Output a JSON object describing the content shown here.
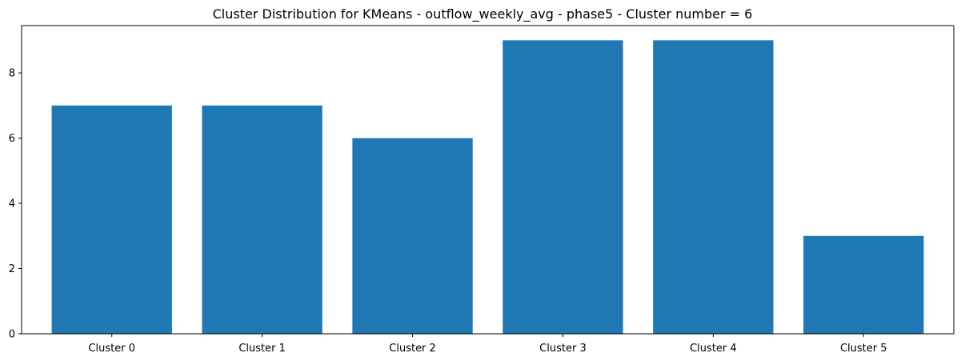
{
  "chart_data": {
    "type": "bar",
    "title": "Cluster Distribution for KMeans - outflow_weekly_avg - phase5 - Cluster number = 6",
    "xlabel": "",
    "ylabel": "",
    "categories": [
      "Cluster 0",
      "Cluster 1",
      "Cluster 2",
      "Cluster 3",
      "Cluster 4",
      "Cluster 5"
    ],
    "values": [
      7,
      7,
      6,
      9,
      9,
      3
    ],
    "ylim": [
      0,
      9.45
    ],
    "yticks": [
      0,
      2,
      4,
      6,
      8
    ],
    "bar_color": "#1f77b4",
    "grid": false,
    "legend": "none"
  }
}
